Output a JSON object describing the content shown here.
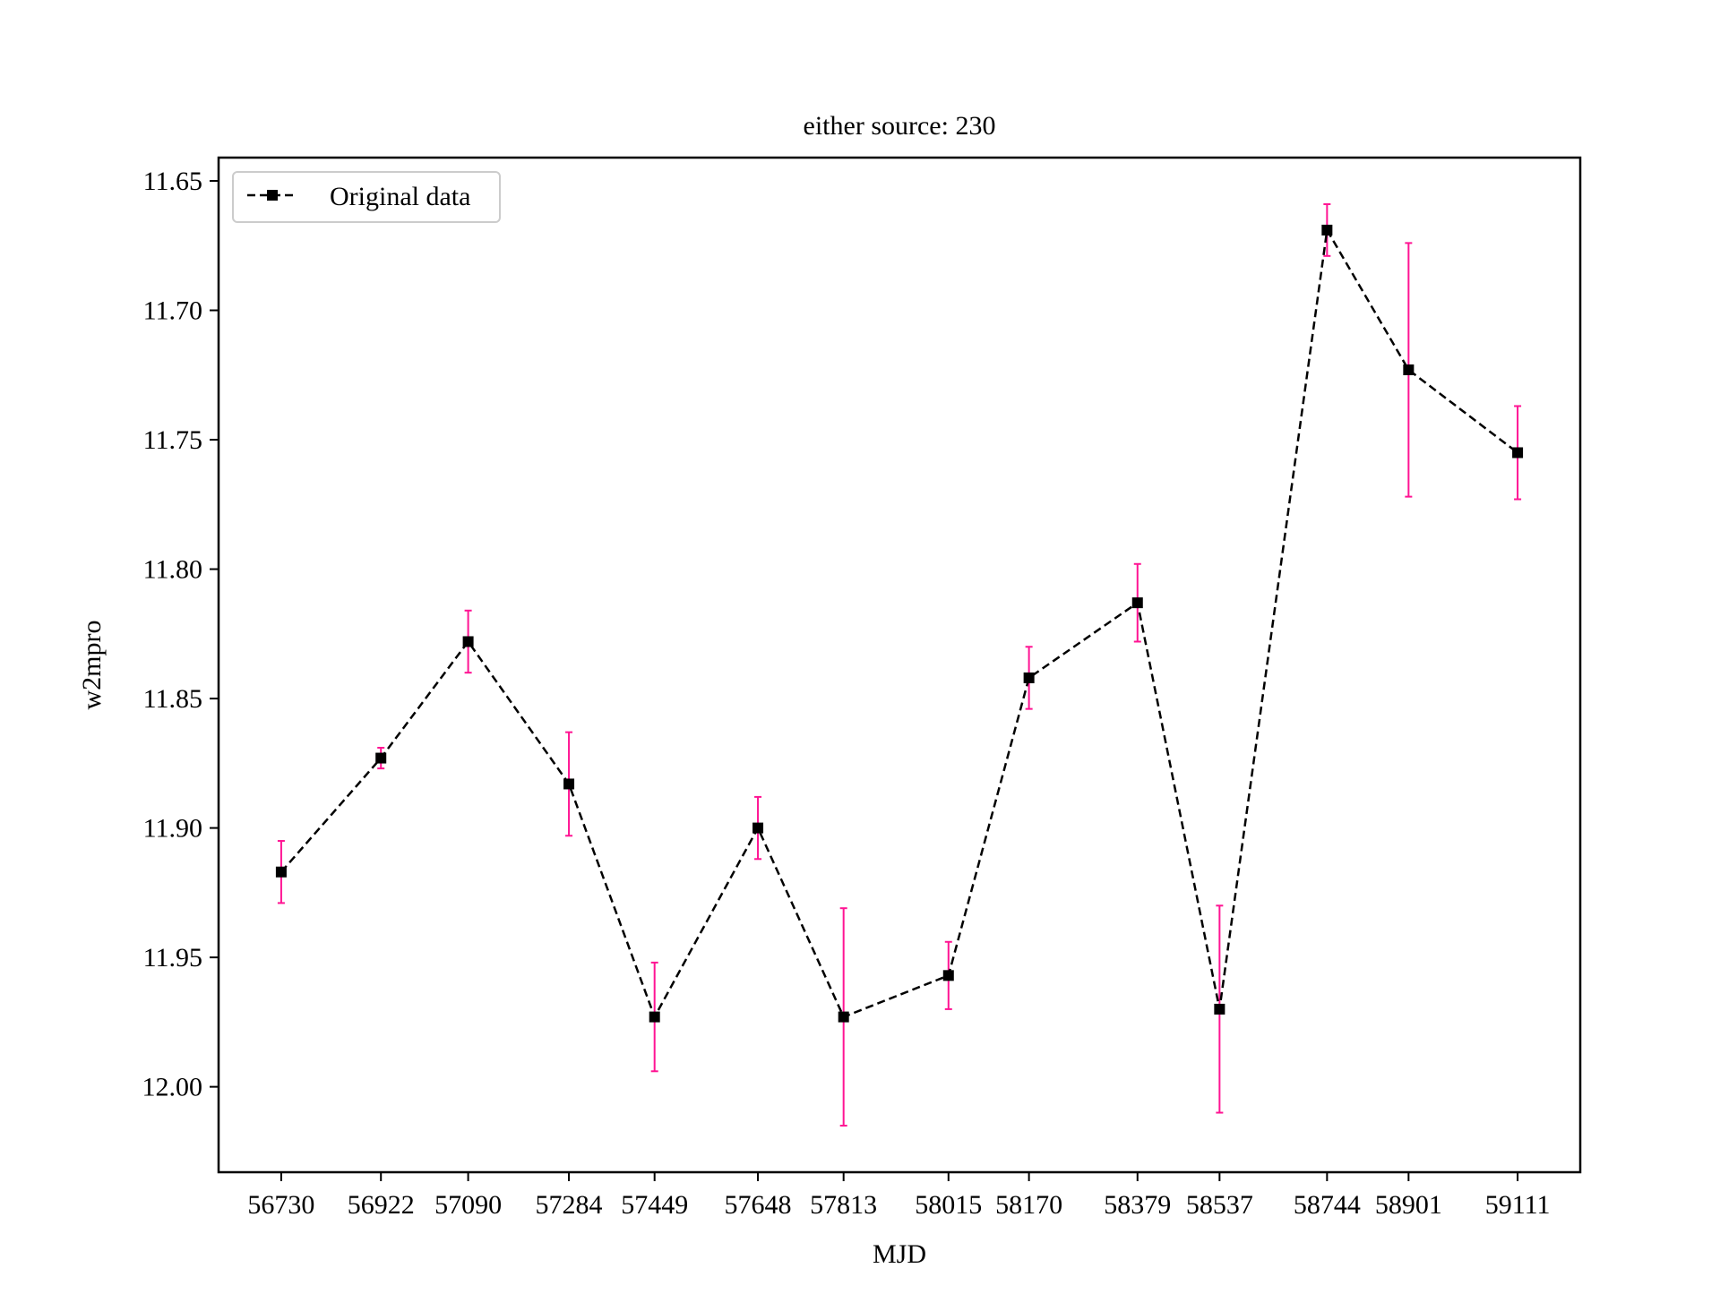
{
  "chart_data": {
    "type": "line",
    "title": "either source: 230",
    "xlabel": "MJD",
    "ylabel": "w2mpro",
    "y_inverted": true,
    "ylim": [
      12.033,
      11.641
    ],
    "yticks": [
      11.65,
      11.7,
      11.75,
      11.8,
      11.85,
      11.9,
      11.95,
      12.0
    ],
    "ytick_labels": [
      "11.65",
      "11.70",
      "11.75",
      "11.80",
      "11.85",
      "11.90",
      "11.95",
      "12.00"
    ],
    "grid": false,
    "legend": {
      "position": "upper-left",
      "entries": [
        {
          "label": "Original data",
          "marker": "square",
          "linestyle": "dashed",
          "color": "#000000"
        }
      ]
    },
    "colors": {
      "line": "#000000",
      "marker": "#000000",
      "errorbar": "#ff1493"
    },
    "series": [
      {
        "name": "Original data",
        "x": [
          56730,
          56922,
          57090,
          57284,
          57449,
          57648,
          57813,
          58015,
          58170,
          58379,
          58537,
          58744,
          58901,
          59111
        ],
        "x_labels": [
          "56730",
          "56922",
          "57090",
          "57284",
          "57449",
          "57648",
          "57813",
          "58015",
          "58170",
          "58379",
          "58537",
          "58744",
          "58901",
          "59111"
        ],
        "y": [
          11.917,
          11.873,
          11.828,
          11.883,
          11.973,
          11.9,
          11.973,
          11.957,
          11.842,
          11.813,
          11.97,
          11.669,
          11.723,
          11.755
        ],
        "yerr": [
          0.012,
          0.004,
          0.012,
          0.02,
          0.021,
          0.012,
          0.042,
          0.013,
          0.012,
          0.015,
          0.04,
          0.01,
          0.049,
          0.018
        ]
      }
    ]
  }
}
